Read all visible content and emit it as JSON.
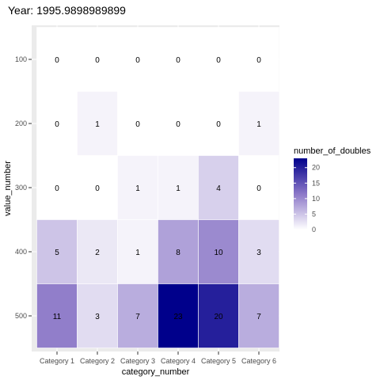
{
  "chart_data": {
    "type": "heatmap",
    "title": "Year: 1995.9898989899",
    "xlabel": "category_number",
    "ylabel": "value_number",
    "x_categories": [
      "Category 1",
      "Category 2",
      "Category 3",
      "Category 4",
      "Category 5",
      "Category 6"
    ],
    "y_categories": [
      "100",
      "200",
      "300",
      "400",
      "500"
    ],
    "values": [
      [
        0,
        0,
        0,
        0,
        0,
        0
      ],
      [
        0,
        1,
        0,
        0,
        0,
        1
      ],
      [
        0,
        0,
        1,
        1,
        4,
        0
      ],
      [
        5,
        2,
        1,
        8,
        10,
        3
      ],
      [
        11,
        3,
        7,
        23,
        20,
        7
      ]
    ],
    "legend": {
      "title": "number_of_doubles",
      "min": 0,
      "max": 23,
      "ticks": [
        0,
        5,
        10,
        15,
        20
      ],
      "low_color": "#ffffff",
      "high_color": "#00008b",
      "placement": "right"
    },
    "panel_background": "#ebebeb",
    "grid": true
  }
}
